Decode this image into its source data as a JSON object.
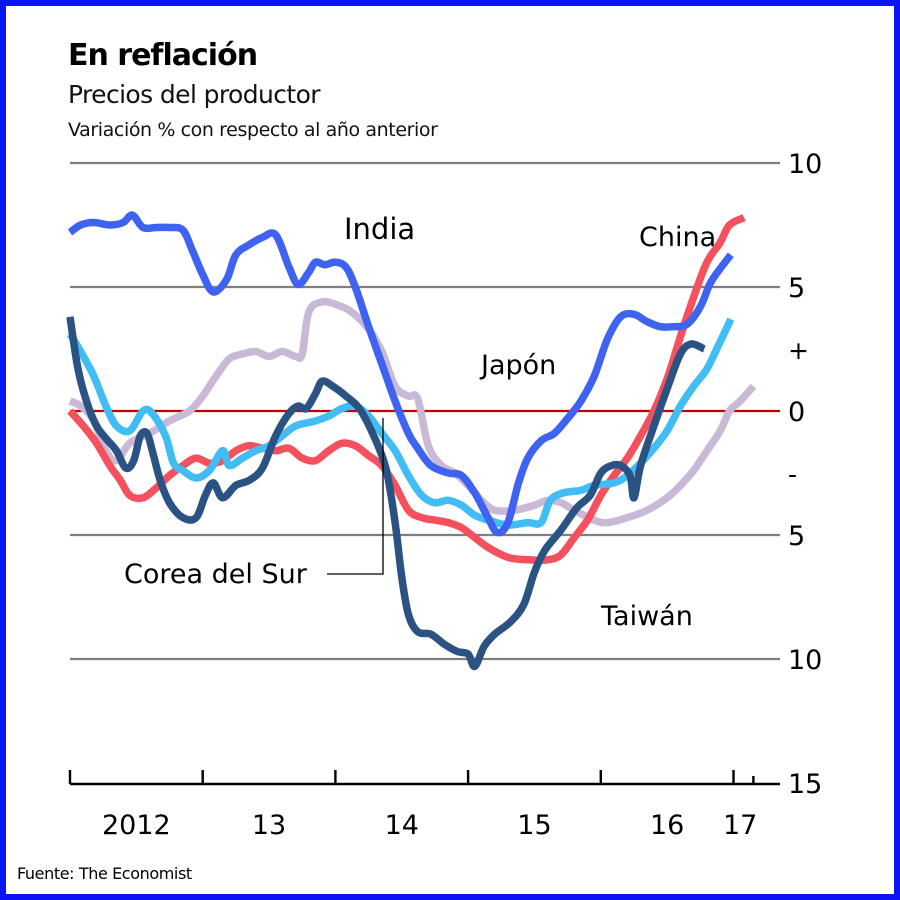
{
  "header": {
    "title": "En reflación",
    "subtitle": "Precios del productor",
    "units": "Variación % con respecto al año anterior"
  },
  "footer": {
    "source": "Fuente: The Economist"
  },
  "chart_data": {
    "type": "line",
    "title": "En reflación",
    "subtitle": "Precios del productor",
    "ylabel": "Variación % con respecto al año anterior",
    "xlabel": "",
    "xlim": [
      2012,
      2017.35
    ],
    "ylim": [
      -15,
      10
    ],
    "grid": true,
    "y_ticks": [
      {
        "value": 10,
        "label": "10"
      },
      {
        "value": 5,
        "label": "5"
      },
      {
        "value": 2.5,
        "label": "+"
      },
      {
        "value": 0,
        "label": "0"
      },
      {
        "value": -2.5,
        "label": "-"
      },
      {
        "value": -5,
        "label": "5"
      },
      {
        "value": -10,
        "label": "10"
      },
      {
        "value": -15,
        "label": "15"
      }
    ],
    "gridlines": [
      10,
      5,
      -5,
      -10
    ],
    "zero_line": 0,
    "x_ticks": [
      2012,
      2013,
      2014,
      2015,
      2016,
      2017,
      2017.15
    ],
    "x_labels": [
      {
        "value": 2012.5,
        "label": "2012"
      },
      {
        "value": 2013.5,
        "label": "13"
      },
      {
        "value": 2014.5,
        "label": "14"
      },
      {
        "value": 2015.5,
        "label": "15"
      },
      {
        "value": 2016.5,
        "label": "16"
      },
      {
        "value": 2017.05,
        "label": "17"
      }
    ],
    "colors": {
      "gridline": "#7f7f7f",
      "zero_line": "#c00000",
      "axis": "#000000",
      "frame": "#0a14f5"
    },
    "series": [
      {
        "name": "Japón",
        "color": "#c9b9d7",
        "label": "Japón",
        "points": [
          [
            2012.0,
            0.4
          ],
          [
            2012.08,
            0.2
          ],
          [
            2012.18,
            -0.4
          ],
          [
            2012.27,
            -1.6
          ],
          [
            2012.35,
            -2.0
          ],
          [
            2012.45,
            -1.3
          ],
          [
            2012.6,
            -0.9
          ],
          [
            2012.75,
            -0.4
          ],
          [
            2012.9,
            0.0
          ],
          [
            2013.0,
            0.6
          ],
          [
            2013.1,
            1.4
          ],
          [
            2013.2,
            2.1
          ],
          [
            2013.3,
            2.3
          ],
          [
            2013.4,
            2.4
          ],
          [
            2013.5,
            2.2
          ],
          [
            2013.6,
            2.4
          ],
          [
            2013.7,
            2.2
          ],
          [
            2013.75,
            2.3
          ],
          [
            2013.8,
            4.0
          ],
          [
            2013.9,
            4.4
          ],
          [
            2014.0,
            4.3
          ],
          [
            2014.12,
            4.0
          ],
          [
            2014.25,
            3.3
          ],
          [
            2014.35,
            2.4
          ],
          [
            2014.45,
            1.0
          ],
          [
            2014.55,
            0.6
          ],
          [
            2014.62,
            0.5
          ],
          [
            2014.7,
            -1.4
          ],
          [
            2014.8,
            -2.2
          ],
          [
            2014.9,
            -2.5
          ],
          [
            2015.0,
            -3.0
          ],
          [
            2015.1,
            -3.6
          ],
          [
            2015.2,
            -4.0
          ],
          [
            2015.35,
            -4.0
          ],
          [
            2015.5,
            -3.8
          ],
          [
            2015.6,
            -3.6
          ],
          [
            2015.7,
            -3.7
          ],
          [
            2015.8,
            -4.0
          ],
          [
            2015.95,
            -4.4
          ],
          [
            2016.05,
            -4.5
          ],
          [
            2016.2,
            -4.3
          ],
          [
            2016.35,
            -4.0
          ],
          [
            2016.5,
            -3.5
          ],
          [
            2016.6,
            -3.0
          ],
          [
            2016.7,
            -2.4
          ],
          [
            2016.8,
            -1.6
          ],
          [
            2016.9,
            -0.8
          ],
          [
            2016.97,
            0.0
          ],
          [
            2017.05,
            0.4
          ],
          [
            2017.15,
            1.0
          ]
        ]
      },
      {
        "name": "China",
        "color": "#f4505e",
        "label": "China",
        "points": [
          [
            2012.0,
            0.0
          ],
          [
            2012.1,
            -0.6
          ],
          [
            2012.2,
            -1.3
          ],
          [
            2012.3,
            -2.2
          ],
          [
            2012.38,
            -2.8
          ],
          [
            2012.45,
            -3.4
          ],
          [
            2012.55,
            -3.5
          ],
          [
            2012.65,
            -3.1
          ],
          [
            2012.75,
            -2.6
          ],
          [
            2012.85,
            -2.2
          ],
          [
            2012.95,
            -1.9
          ],
          [
            2013.05,
            -2.1
          ],
          [
            2013.15,
            -2.0
          ],
          [
            2013.25,
            -1.6
          ],
          [
            2013.35,
            -1.4
          ],
          [
            2013.45,
            -1.5
          ],
          [
            2013.55,
            -1.6
          ],
          [
            2013.65,
            -1.5
          ],
          [
            2013.75,
            -1.9
          ],
          [
            2013.85,
            -2.0
          ],
          [
            2013.95,
            -1.6
          ],
          [
            2014.05,
            -1.3
          ],
          [
            2014.15,
            -1.4
          ],
          [
            2014.25,
            -1.8
          ],
          [
            2014.35,
            -2.2
          ],
          [
            2014.45,
            -3.0
          ],
          [
            2014.55,
            -4.0
          ],
          [
            2014.65,
            -4.3
          ],
          [
            2014.75,
            -4.4
          ],
          [
            2014.85,
            -4.5
          ],
          [
            2014.95,
            -4.7
          ],
          [
            2015.05,
            -5.1
          ],
          [
            2015.15,
            -5.5
          ],
          [
            2015.3,
            -5.9
          ],
          [
            2015.45,
            -6.0
          ],
          [
            2015.6,
            -6.0
          ],
          [
            2015.7,
            -5.8
          ],
          [
            2015.8,
            -5.1
          ],
          [
            2015.9,
            -4.4
          ],
          [
            2016.0,
            -3.4
          ],
          [
            2016.1,
            -2.6
          ],
          [
            2016.2,
            -1.9
          ],
          [
            2016.3,
            -1.0
          ],
          [
            2016.4,
            0.0
          ],
          [
            2016.5,
            1.3
          ],
          [
            2016.6,
            3.0
          ],
          [
            2016.7,
            4.6
          ],
          [
            2016.8,
            6.0
          ],
          [
            2016.9,
            6.8
          ],
          [
            2016.97,
            7.5
          ],
          [
            2017.08,
            7.8
          ]
        ]
      },
      {
        "name": "Corea del Sur",
        "color": "#41bdf3",
        "label": "Corea del Sur",
        "points": [
          [
            2012.0,
            3.1
          ],
          [
            2012.08,
            2.4
          ],
          [
            2012.18,
            1.4
          ],
          [
            2012.27,
            0.2
          ],
          [
            2012.35,
            -0.6
          ],
          [
            2012.45,
            -0.8
          ],
          [
            2012.55,
            0.0
          ],
          [
            2012.62,
            -0.1
          ],
          [
            2012.72,
            -1.0
          ],
          [
            2012.78,
            -2.1
          ],
          [
            2012.85,
            -2.4
          ],
          [
            2012.95,
            -2.7
          ],
          [
            2013.05,
            -2.4
          ],
          [
            2013.15,
            -1.6
          ],
          [
            2013.2,
            -2.2
          ],
          [
            2013.3,
            -1.9
          ],
          [
            2013.4,
            -1.6
          ],
          [
            2013.5,
            -1.4
          ],
          [
            2013.6,
            -1.0
          ],
          [
            2013.7,
            -0.6
          ],
          [
            2013.85,
            -0.4
          ],
          [
            2013.95,
            -0.2
          ],
          [
            2014.05,
            0.1
          ],
          [
            2014.15,
            0.2
          ],
          [
            2014.25,
            -0.2
          ],
          [
            2014.35,
            -0.9
          ],
          [
            2014.45,
            -1.6
          ],
          [
            2014.55,
            -2.6
          ],
          [
            2014.65,
            -3.4
          ],
          [
            2014.75,
            -3.7
          ],
          [
            2014.85,
            -3.6
          ],
          [
            2014.95,
            -3.8
          ],
          [
            2015.05,
            -4.2
          ],
          [
            2015.15,
            -4.4
          ],
          [
            2015.3,
            -4.6
          ],
          [
            2015.45,
            -4.5
          ],
          [
            2015.55,
            -4.5
          ],
          [
            2015.62,
            -3.6
          ],
          [
            2015.72,
            -3.3
          ],
          [
            2015.85,
            -3.2
          ],
          [
            2015.95,
            -3.0
          ],
          [
            2016.1,
            -2.9
          ],
          [
            2016.2,
            -2.6
          ],
          [
            2016.3,
            -2.1
          ],
          [
            2016.4,
            -1.5
          ],
          [
            2016.5,
            -0.8
          ],
          [
            2016.6,
            0.2
          ],
          [
            2016.7,
            1.0
          ],
          [
            2016.8,
            1.7
          ],
          [
            2016.9,
            2.8
          ],
          [
            2016.98,
            3.7
          ]
        ]
      },
      {
        "name": "India",
        "color": "#3e63f0",
        "label": "India",
        "points": [
          [
            2012.0,
            7.2
          ],
          [
            2012.08,
            7.5
          ],
          [
            2012.18,
            7.6
          ],
          [
            2012.3,
            7.5
          ],
          [
            2012.4,
            7.6
          ],
          [
            2012.47,
            7.9
          ],
          [
            2012.55,
            7.4
          ],
          [
            2012.65,
            7.4
          ],
          [
            2012.75,
            7.4
          ],
          [
            2012.85,
            7.3
          ],
          [
            2012.92,
            6.5
          ],
          [
            2013.0,
            5.5
          ],
          [
            2013.08,
            4.8
          ],
          [
            2013.18,
            5.3
          ],
          [
            2013.25,
            6.3
          ],
          [
            2013.35,
            6.7
          ],
          [
            2013.45,
            7.0
          ],
          [
            2013.55,
            7.1
          ],
          [
            2013.65,
            5.8
          ],
          [
            2013.72,
            5.1
          ],
          [
            2013.8,
            5.6
          ],
          [
            2013.85,
            6.0
          ],
          [
            2013.92,
            5.9
          ],
          [
            2014.0,
            6.0
          ],
          [
            2014.08,
            5.8
          ],
          [
            2014.15,
            5.0
          ],
          [
            2014.25,
            3.4
          ],
          [
            2014.35,
            1.9
          ],
          [
            2014.45,
            0.4
          ],
          [
            2014.55,
            -0.9
          ],
          [
            2014.62,
            -1.5
          ],
          [
            2014.72,
            -2.2
          ],
          [
            2014.85,
            -2.5
          ],
          [
            2014.95,
            -2.6
          ],
          [
            2015.05,
            -3.3
          ],
          [
            2015.15,
            -4.3
          ],
          [
            2015.22,
            -4.9
          ],
          [
            2015.3,
            -4.5
          ],
          [
            2015.38,
            -2.9
          ],
          [
            2015.45,
            -1.9
          ],
          [
            2015.55,
            -1.2
          ],
          [
            2015.65,
            -0.9
          ],
          [
            2015.75,
            -0.3
          ],
          [
            2015.85,
            0.4
          ],
          [
            2015.95,
            1.4
          ],
          [
            2016.05,
            2.9
          ],
          [
            2016.15,
            3.8
          ],
          [
            2016.25,
            3.9
          ],
          [
            2016.35,
            3.6
          ],
          [
            2016.45,
            3.4
          ],
          [
            2016.55,
            3.4
          ],
          [
            2016.65,
            3.5
          ],
          [
            2016.75,
            4.2
          ],
          [
            2016.82,
            5.1
          ],
          [
            2016.88,
            5.6
          ],
          [
            2016.98,
            6.3
          ]
        ]
      },
      {
        "name": "Taiwán",
        "color": "#2a5383",
        "label": "Taiwán",
        "points": [
          [
            2012.0,
            3.8
          ],
          [
            2012.06,
            1.7
          ],
          [
            2012.13,
            0.3
          ],
          [
            2012.2,
            -0.6
          ],
          [
            2012.27,
            -1.1
          ],
          [
            2012.35,
            -1.6
          ],
          [
            2012.42,
            -2.3
          ],
          [
            2012.48,
            -2.0
          ],
          [
            2012.53,
            -1.0
          ],
          [
            2012.58,
            -0.9
          ],
          [
            2012.62,
            -1.6
          ],
          [
            2012.68,
            -2.8
          ],
          [
            2012.75,
            -3.7
          ],
          [
            2012.85,
            -4.3
          ],
          [
            2012.95,
            -4.3
          ],
          [
            2013.02,
            -3.4
          ],
          [
            2013.08,
            -2.9
          ],
          [
            2013.15,
            -3.5
          ],
          [
            2013.25,
            -3.0
          ],
          [
            2013.35,
            -2.8
          ],
          [
            2013.45,
            -2.3
          ],
          [
            2013.55,
            -1.0
          ],
          [
            2013.65,
            -0.1
          ],
          [
            2013.72,
            0.2
          ],
          [
            2013.78,
            0.1
          ],
          [
            2013.85,
            0.7
          ],
          [
            2013.9,
            1.2
          ],
          [
            2013.98,
            1.0
          ],
          [
            2014.08,
            0.6
          ],
          [
            2014.18,
            0.1
          ],
          [
            2014.28,
            -0.9
          ],
          [
            2014.38,
            -2.3
          ],
          [
            2014.45,
            -4.5
          ],
          [
            2014.5,
            -6.7
          ],
          [
            2014.55,
            -8.2
          ],
          [
            2014.62,
            -8.9
          ],
          [
            2014.72,
            -9.0
          ],
          [
            2014.82,
            -9.4
          ],
          [
            2014.92,
            -9.7
          ],
          [
            2015.0,
            -9.8
          ],
          [
            2015.05,
            -10.3
          ],
          [
            2015.12,
            -9.5
          ],
          [
            2015.2,
            -9.0
          ],
          [
            2015.32,
            -8.5
          ],
          [
            2015.42,
            -7.8
          ],
          [
            2015.5,
            -6.5
          ],
          [
            2015.58,
            -5.6
          ],
          [
            2015.7,
            -4.8
          ],
          [
            2015.82,
            -3.9
          ],
          [
            2015.92,
            -3.4
          ],
          [
            2016.0,
            -2.5
          ],
          [
            2016.08,
            -2.2
          ],
          [
            2016.15,
            -2.2
          ],
          [
            2016.22,
            -2.6
          ],
          [
            2016.25,
            -3.5
          ],
          [
            2016.3,
            -2.2
          ],
          [
            2016.4,
            -0.6
          ],
          [
            2016.5,
            0.9
          ],
          [
            2016.6,
            2.3
          ],
          [
            2016.68,
            2.7
          ],
          [
            2016.78,
            2.5
          ]
        ]
      }
    ],
    "annotations": [
      {
        "text": "India",
        "series": "India"
      },
      {
        "text": "China",
        "series": "China"
      },
      {
        "text": "Japón",
        "series": "Japón"
      },
      {
        "text": "Corea del Sur",
        "series": "Corea del Sur"
      },
      {
        "text": "Taiwán",
        "series": "Taiwán"
      }
    ]
  }
}
